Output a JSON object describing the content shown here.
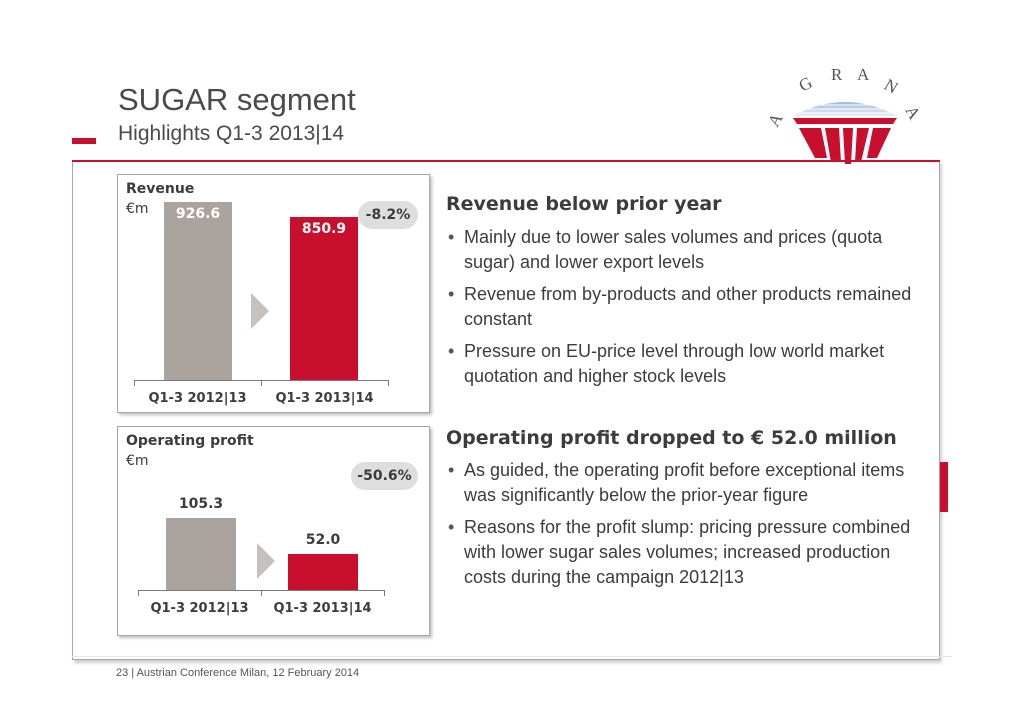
{
  "slide": {
    "title": "SUGAR segment",
    "subtitle": "Highlights Q1-3 2013|14",
    "footer": "23  |  Austrian Conference Milan, 12 February 2014"
  },
  "logo": {
    "letters": [
      "A",
      "G",
      "R",
      "A",
      "N",
      "A"
    ]
  },
  "colors": {
    "accent": "#c8102e",
    "prior_bar": "#aaa39e",
    "badge": "#dedede"
  },
  "revenue_chart": {
    "title": "Revenue",
    "unit": "€m",
    "change": "-8.2%",
    "categories": [
      "Q1-3 2012|13",
      "Q1-3 2013|14"
    ],
    "values": [
      926.6,
      850.9
    ],
    "value_labels": [
      "926.6",
      "850.9"
    ]
  },
  "profit_chart": {
    "title": "Operating profit",
    "unit": "€m",
    "change": "-50.6%",
    "categories": [
      "Q1-3 2012|13",
      "Q1-3 2013|14"
    ],
    "values": [
      105.3,
      52.0
    ],
    "value_labels": [
      "105.3",
      "52.0"
    ]
  },
  "chart_data": [
    {
      "type": "bar",
      "title": "Revenue",
      "ylabel": "€m",
      "categories": [
        "Q1-3 2012|13",
        "Q1-3 2013|14"
      ],
      "values": [
        926.6,
        850.9
      ],
      "annotations": [
        "-8.2%"
      ]
    },
    {
      "type": "bar",
      "title": "Operating profit",
      "ylabel": "€m",
      "categories": [
        "Q1-3 2012|13",
        "Q1-3 2013|14"
      ],
      "values": [
        105.3,
        52.0
      ],
      "annotations": [
        "-50.6%"
      ]
    }
  ],
  "sections": [
    {
      "heading": "Revenue below prior year",
      "bullets": [
        "Mainly due to lower sales volumes and prices (quota sugar) and lower export levels",
        "Revenue from by-products and other products remained constant",
        "Pressure on EU-price level through low world market quotation and higher stock levels"
      ]
    },
    {
      "heading": "Operating profit dropped to € 52.0 million",
      "bullets": [
        "As guided, the operating profit before exceptional items was significantly below the prior-year figure",
        "Reasons for the profit slump: pricing pressure combined with lower sugar sales volumes; increased production costs during the campaign 2012|13"
      ]
    }
  ]
}
